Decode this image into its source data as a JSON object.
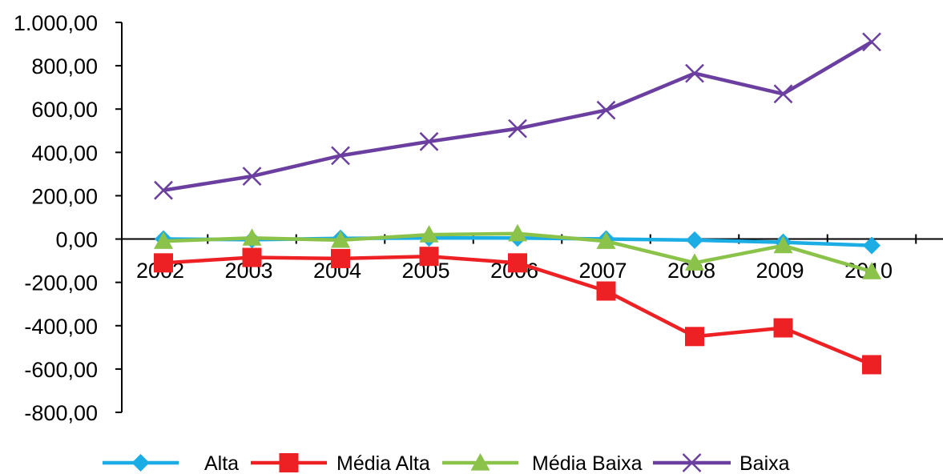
{
  "chart_data": {
    "type": "line",
    "title": "",
    "xlabel": "",
    "ylabel": "",
    "categories": [
      "2002",
      "2003",
      "2004",
      "2005",
      "2006",
      "2007",
      "2008",
      "2009",
      "2010"
    ],
    "ylim": [
      -800,
      1000
    ],
    "yticks": [
      1000,
      800,
      600,
      400,
      200,
      0,
      -200,
      -400,
      -600,
      -800
    ],
    "ytick_labels": [
      "1.000,00",
      "800,00",
      "600,00",
      "400,00",
      "200,00",
      "0,00",
      "-200,00",
      "-400,00",
      "-600,00",
      "-800,00"
    ],
    "grid": false,
    "legend_position": "bottom",
    "series": [
      {
        "name": "Alta",
        "color": "#1BADE4",
        "marker": "diamond",
        "values": [
          0,
          -3,
          3,
          5,
          5,
          0,
          -5,
          -15,
          -30
        ]
      },
      {
        "name": "Média Alta",
        "color": "#ED2124",
        "marker": "square",
        "values": [
          -110,
          -85,
          -90,
          -80,
          -110,
          -240,
          -450,
          -410,
          -580
        ]
      },
      {
        "name": "Média Baixa",
        "color": "#8BC34A",
        "marker": "triangle",
        "values": [
          -10,
          5,
          -5,
          20,
          25,
          -10,
          -110,
          -30,
          -150
        ]
      },
      {
        "name": "Baixa",
        "color": "#6A3FA0",
        "marker": "x",
        "values": [
          225,
          290,
          385,
          450,
          510,
          595,
          765,
          670,
          910
        ]
      }
    ]
  }
}
